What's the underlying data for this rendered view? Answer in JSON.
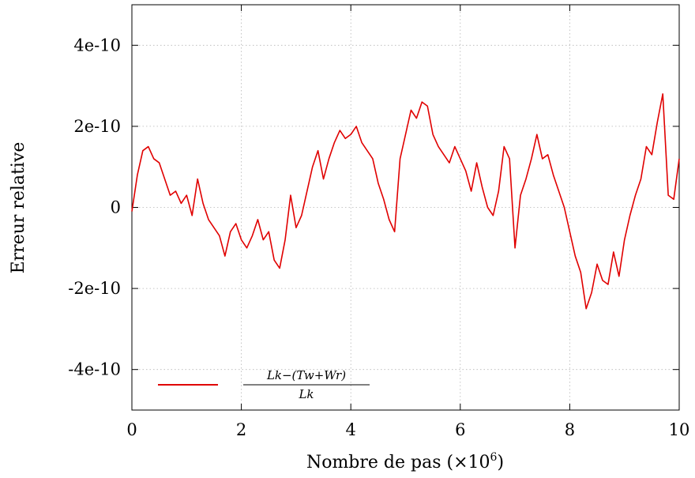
{
  "chart_data": {
    "type": "line",
    "xlabel_base": "Nombre de pas (×10",
    "xlabel_exp": "6",
    "xlabel_close": ")",
    "ylabel": "Erreur relative",
    "xlim": [
      0,
      10
    ],
    "ylim": [
      -5e-10,
      5e-10
    ],
    "xticks": [
      0,
      2,
      4,
      6,
      8,
      10
    ],
    "xtick_labels": [
      "0",
      "2",
      "4",
      "6",
      "8",
      "10"
    ],
    "yticks": [
      -4e-10,
      -2e-10,
      0,
      2e-10,
      4e-10
    ],
    "ytick_labels": [
      "-4e-10",
      "-2e-10",
      "0",
      "2e-10",
      "4e-10"
    ],
    "grid": true,
    "legend_position": "bottom-left",
    "series": [
      {
        "name_numerator": "Lk−(Tw+Wr)",
        "name_denominator": "Lk",
        "color": "#e00000",
        "x": [
          0.0,
          0.1,
          0.2,
          0.3,
          0.4,
          0.5,
          0.6,
          0.7,
          0.8,
          0.9,
          1.0,
          1.1,
          1.2,
          1.3,
          1.4,
          1.5,
          1.6,
          1.7,
          1.8,
          1.9,
          2.0,
          2.1,
          2.2,
          2.3,
          2.4,
          2.5,
          2.6,
          2.7,
          2.8,
          2.9,
          3.0,
          3.1,
          3.2,
          3.3,
          3.4,
          3.5,
          3.6,
          3.7,
          3.8,
          3.9,
          4.0,
          4.1,
          4.2,
          4.3,
          4.4,
          4.5,
          4.6,
          4.7,
          4.8,
          4.9,
          5.0,
          5.1,
          5.2,
          5.3,
          5.4,
          5.5,
          5.6,
          5.7,
          5.8,
          5.9,
          6.0,
          6.1,
          6.2,
          6.3,
          6.4,
          6.5,
          6.6,
          6.7,
          6.8,
          6.9,
          7.0,
          7.1,
          7.2,
          7.3,
          7.4,
          7.5,
          7.6,
          7.7,
          7.8,
          7.9,
          8.0,
          8.1,
          8.2,
          8.3,
          8.4,
          8.5,
          8.6,
          8.7,
          8.8,
          8.9,
          9.0,
          9.1,
          9.2,
          9.3,
          9.4,
          9.5,
          9.6,
          9.7,
          9.8,
          9.9,
          10.0
        ],
        "y": [
          -1e-11,
          8e-11,
          1.4e-10,
          1.5e-10,
          1.2e-10,
          1.1e-10,
          7e-11,
          3e-11,
          4e-11,
          1e-11,
          3e-11,
          -2e-11,
          7e-11,
          1e-11,
          -3e-11,
          -5e-11,
          -7e-11,
          -1.2e-10,
          -6e-11,
          -4e-11,
          -8e-11,
          -1e-10,
          -7e-11,
          -3e-11,
          -8e-11,
          -6e-11,
          -1.3e-10,
          -1.5e-10,
          -8e-11,
          3e-11,
          -5e-11,
          -2e-11,
          4e-11,
          1e-10,
          1.4e-10,
          7e-11,
          1.2e-10,
          1.6e-10,
          1.9e-10,
          1.7e-10,
          1.8e-10,
          2e-10,
          1.6e-10,
          1.4e-10,
          1.2e-10,
          6e-11,
          2e-11,
          -3e-11,
          -6e-11,
          1.2e-10,
          1.8e-10,
          2.4e-10,
          2.2e-10,
          2.6e-10,
          2.5e-10,
          1.8e-10,
          1.5e-10,
          1.3e-10,
          1.1e-10,
          1.5e-10,
          1.2e-10,
          9e-11,
          4e-11,
          1.1e-10,
          5e-11,
          0.0,
          -2e-11,
          4e-11,
          1.5e-10,
          1.2e-10,
          -1e-10,
          3e-11,
          7e-11,
          1.2e-10,
          1.8e-10,
          1.2e-10,
          1.3e-10,
          8e-11,
          4e-11,
          0.0,
          -6e-11,
          -1.2e-10,
          -1.6e-10,
          -2.5e-10,
          -2.1e-10,
          -1.4e-10,
          -1.8e-10,
          -1.9e-10,
          -1.1e-10,
          -1.7e-10,
          -8e-11,
          -2e-11,
          3e-11,
          7e-11,
          1.5e-10,
          1.3e-10,
          2.1e-10,
          2.8e-10,
          3e-11,
          2e-11,
          1.2e-10
        ]
      }
    ]
  }
}
